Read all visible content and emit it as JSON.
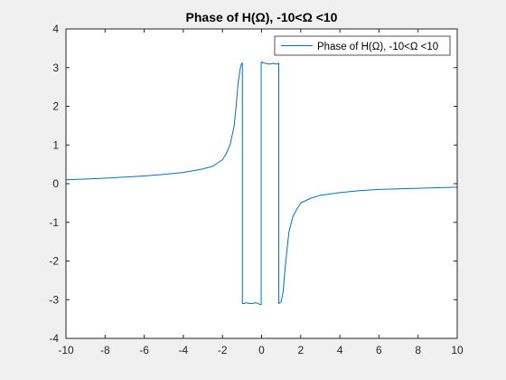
{
  "chart_data": {
    "type": "line",
    "title": "Phase of H(Ω), -10<Ω <10",
    "xlabel": "",
    "ylabel": "",
    "xlim": [
      -10,
      10
    ],
    "ylim": [
      -4,
      4
    ],
    "x_ticks": [
      -10,
      -8,
      -6,
      -4,
      -2,
      0,
      2,
      4,
      6,
      8,
      10
    ],
    "y_ticks": [
      -4,
      -3,
      -2,
      -1,
      0,
      1,
      2,
      3,
      4
    ],
    "x_tick_labels": [
      "-10",
      "-8",
      "-6",
      "-4",
      "-2",
      "0",
      "2",
      "4",
      "6",
      "8",
      "10"
    ],
    "y_tick_labels": [
      "-4",
      "-3",
      "-2",
      "-1",
      "0",
      "1",
      "2",
      "3",
      "4"
    ],
    "grid": false,
    "legend_position": "top-right",
    "series": [
      {
        "name": "Phase of H(Ω), -10<Ω <10",
        "color": "#0072bd",
        "x": [
          -10,
          -8,
          -6,
          -5,
          -4,
          -3,
          -2.5,
          -2,
          -1.8,
          -1.6,
          -1.4,
          -1.3,
          -1.2,
          -1.1,
          -1.03,
          -0.98,
          -0.98,
          -0.9,
          -0.8,
          -0.7,
          -0.6,
          -0.5,
          -0.4,
          -0.3,
          -0.2,
          -0.1,
          -0.02,
          -0.02,
          0,
          0.02,
          0.02,
          0.1,
          0.2,
          0.3,
          0.4,
          0.5,
          0.6,
          0.7,
          0.8,
          0.85,
          0.88,
          0.88,
          1.0,
          1.1,
          1.2,
          1.3,
          1.4,
          1.6,
          1.8,
          2,
          2.5,
          3,
          4,
          5,
          6,
          8,
          10
        ],
        "y": [
          0.1,
          0.14,
          0.2,
          0.24,
          0.29,
          0.38,
          0.45,
          0.62,
          0.78,
          1.02,
          1.5,
          2.0,
          2.6,
          2.95,
          3.1,
          3.12,
          -3.1,
          -3.1,
          -3.08,
          -3.09,
          -3.1,
          -3.1,
          -3.09,
          -3.08,
          -3.09,
          -3.12,
          -3.13,
          3.13,
          3.15,
          3.14,
          3.14,
          3.12,
          3.11,
          3.1,
          3.09,
          3.1,
          3.11,
          3.1,
          3.09,
          3.1,
          3.12,
          -3.1,
          -3.05,
          -2.8,
          -2.2,
          -1.7,
          -1.25,
          -0.85,
          -0.66,
          -0.5,
          -0.38,
          -0.3,
          -0.23,
          -0.18,
          -0.15,
          -0.12,
          -0.09
        ]
      }
    ]
  }
}
